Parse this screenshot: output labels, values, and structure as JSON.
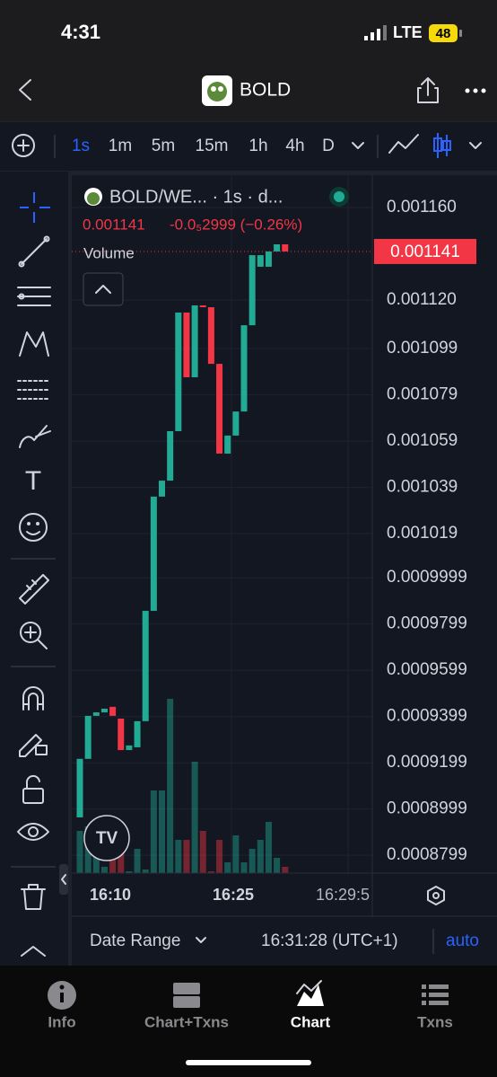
{
  "status_bar": {
    "time": "4:31",
    "network": "LTE",
    "battery": "48"
  },
  "header": {
    "title": "BOLD"
  },
  "toolbar": {
    "intervals": [
      "1s",
      "1m",
      "5m",
      "15m",
      "1h",
      "4h",
      "D"
    ]
  },
  "chart_data": {
    "type": "candlestick",
    "title": "BOLD/WE... · 1s · d...",
    "legend_price": "0.001141",
    "legend_change": "-0.0₅2999 (−0.26%)",
    "volume_label": "Volume",
    "last_price": 0.001141,
    "x_labels": [
      "16:10",
      "16:25",
      "16:29:5"
    ],
    "open": [
      0.0008963,
      0.0009216,
      0.0009402,
      0.0009417,
      0.0009441,
      0.000939,
      0.0009254,
      0.0009266,
      0.0009379,
      0.0009856,
      0.001035,
      0.0010419,
      0.0010633,
      0.0011146,
      0.0010866,
      0.0011177,
      0.0011169,
      0.0010924,
      0.0010536,
      0.0010614,
      0.0010718,
      0.0011091,
      0.0011344,
      0.0011344,
      0.001141,
      0.0011441
    ],
    "close": [
      0.0009216,
      0.0009402,
      0.0009417,
      0.0009433,
      0.0009402,
      0.0009254,
      0.0009274,
      0.0009379,
      0.0009856,
      0.001035,
      0.0010419,
      0.0010633,
      0.0011146,
      0.0010866,
      0.0011177,
      0.0011169,
      0.0010924,
      0.0010536,
      0.0010614,
      0.0010718,
      0.0011091,
      0.0011394,
      0.0011394,
      0.001141,
      0.0011441,
      0.001141
    ],
    "volume": [
      47,
      52,
      22,
      7,
      17,
      37,
      2,
      27,
      4,
      92,
      92,
      194,
      37,
      37,
      124,
      47,
      2,
      37,
      12,
      42,
      12,
      27,
      37,
      57,
      17,
      7
    ],
    "up_color": "#22ab94",
    "down_color": "#f23645",
    "ylim": [
      0.0008722,
      0.001174
    ],
    "yticks": [
      {
        "value": 0.00116,
        "label": "0.001160"
      },
      {
        "value": 0.00112,
        "label": "0.001120"
      },
      0.001099,
      0.001079,
      0.001059,
      0.001039,
      0.001019,
      0.0009999,
      0.0009799,
      0.0009599,
      0.0009399,
      0.0009199,
      0.0008999,
      0.0008799
    ],
    "grid": true
  },
  "footer": {
    "date_range": "Date Range",
    "time": "16:31:28 (UTC+1)",
    "auto": "auto"
  },
  "tabs": [
    "Info",
    "Chart+Txns",
    "Chart",
    "Txns"
  ]
}
